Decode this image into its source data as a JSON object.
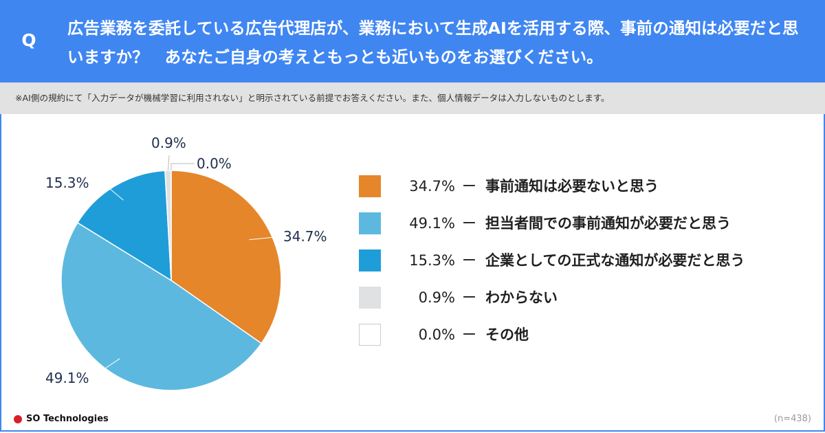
{
  "header": {
    "q_mark": "Q",
    "question": "広告業務を委託している広告代理店が、業務において生成AIを活用する際、事前の通知は必要だと思いますか？　あなたご自身の考えともっとも近いものをお選びください。"
  },
  "note": "※AI側の規約にて「入力データが機械学習に利用されない」と明示されている前提でお答えください。また、個人情報データは入力しないものとします。",
  "chart_data": {
    "type": "pie",
    "unit": "%",
    "slices": [
      {
        "label": "事前通知は必要ないと思う",
        "value": 34.7,
        "display": "34.7%",
        "color": "#e5862a"
      },
      {
        "label": "担当者間での事前通知が必要だと思う",
        "value": 49.1,
        "display": "49.1%",
        "color": "#5db8df"
      },
      {
        "label": "企業としての正式な通知が必要だと思う",
        "value": 15.3,
        "display": "15.3%",
        "color": "#1f9dd8"
      },
      {
        "label": "わからない",
        "value": 0.9,
        "display": "0.9%",
        "color": "#dfe1e2"
      },
      {
        "label": "その他",
        "value": 0.0,
        "display": "0.0%",
        "color": "#ffffff"
      }
    ]
  },
  "legend_dash": "ー",
  "footer": {
    "brand": "SO Technologies",
    "sample_size": "(n=438)",
    "brand_color": "#d81e2a",
    "accent_color": "#3f86f1"
  }
}
